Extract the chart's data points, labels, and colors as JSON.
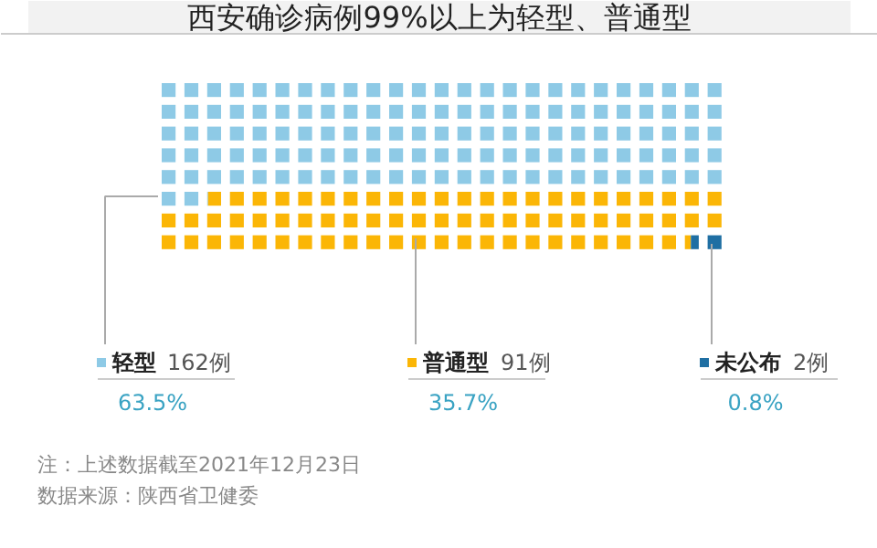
{
  "chart_data": {
    "type": "other",
    "title": "西安确诊病例99%以上为轻型、普通型",
    "categories": [
      "轻型",
      "普通型",
      "未公布"
    ],
    "colors": [
      "#8ecae6",
      "#fbb606",
      "#1f6fa3"
    ],
    "series": [
      {
        "values": [
          162,
          91,
          2
        ],
        "value_labels": [
          "162例",
          "91例",
          "2例"
        ],
        "color": "#555555"
      }
    ],
    "annotations": [
      "63.5%",
      "35.7%",
      "0.8%",
      "注：上述数据截至2021年12月23日",
      "数据来源：陕西省卫健委"
    ]
  }
}
